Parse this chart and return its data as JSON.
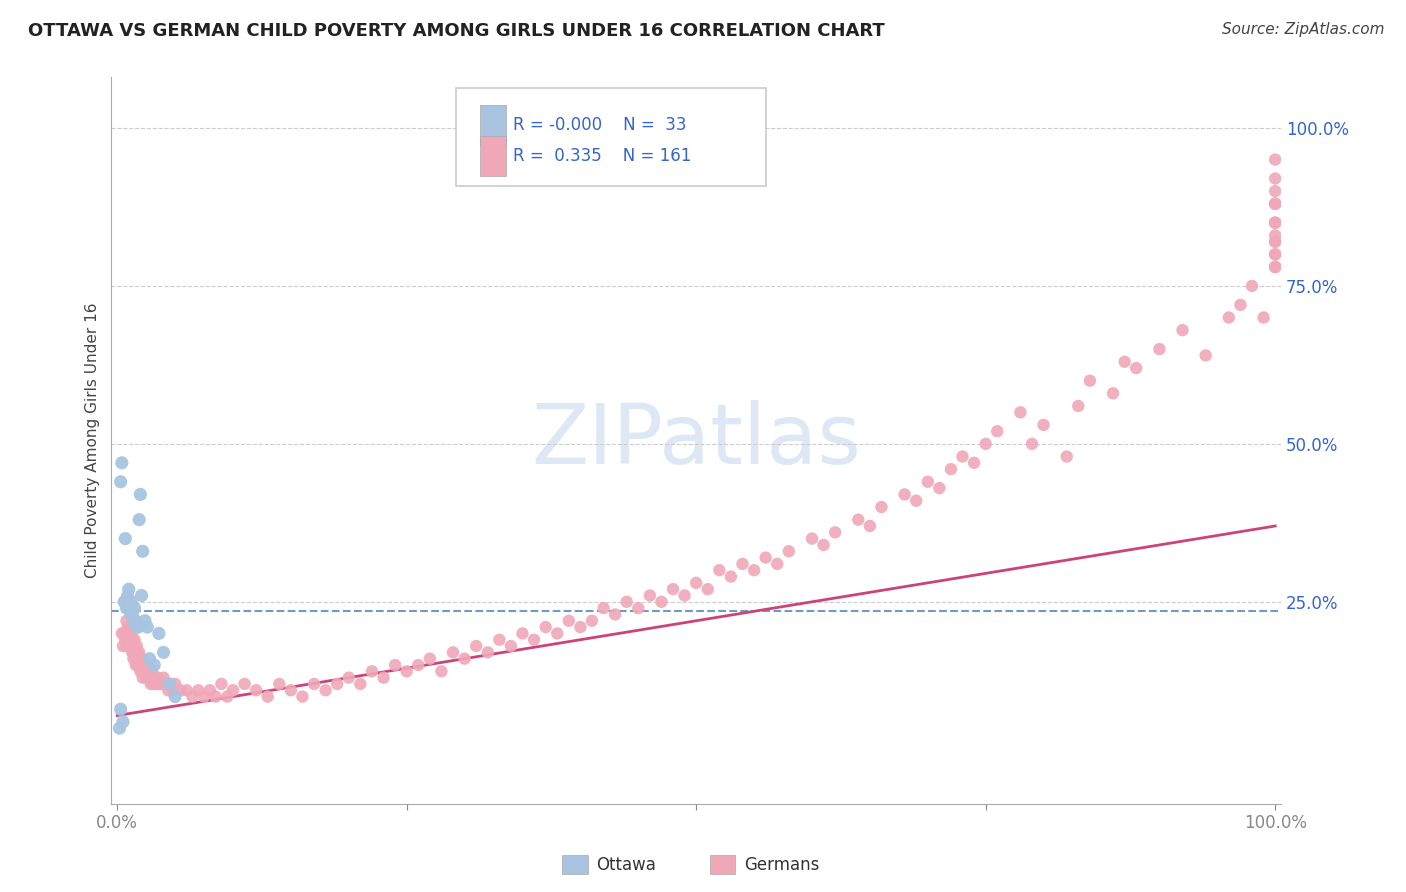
{
  "title": "OTTAWA VS GERMAN CHILD POVERTY AMONG GIRLS UNDER 16 CORRELATION CHART",
  "source": "Source: ZipAtlas.com",
  "ylabel": "Child Poverty Among Girls Under 16",
  "background_color": "#ffffff",
  "watermark_text": "ZIPatlas",
  "watermark_color": "#d0dff0",
  "legend_r_ottawa": "-0.000",
  "legend_n_ottawa": "33",
  "legend_r_german": "0.335",
  "legend_n_german": "161",
  "ottawa_color": "#a8c4e0",
  "german_color": "#f0a8b8",
  "trend_ottawa_color": "#5588bb",
  "trend_german_color": "#cc4477",
  "ottawa_x": [
    0.002,
    0.003,
    0.003,
    0.004,
    0.005,
    0.006,
    0.007,
    0.008,
    0.009,
    0.009,
    0.01,
    0.01,
    0.011,
    0.012,
    0.012,
    0.013,
    0.014,
    0.015,
    0.016,
    0.017,
    0.018,
    0.019,
    0.02,
    0.021,
    0.022,
    0.024,
    0.026,
    0.028,
    0.032,
    0.036,
    0.04,
    0.045,
    0.05
  ],
  "ottawa_y": [
    0.05,
    0.44,
    0.08,
    0.47,
    0.06,
    0.25,
    0.35,
    0.24,
    0.26,
    0.25,
    0.25,
    0.27,
    0.24,
    0.25,
    0.23,
    0.23,
    0.22,
    0.24,
    0.22,
    0.21,
    0.21,
    0.38,
    0.42,
    0.26,
    0.33,
    0.22,
    0.21,
    0.16,
    0.15,
    0.2,
    0.17,
    0.12,
    0.1
  ],
  "german_x": [
    0.004,
    0.005,
    0.006,
    0.007,
    0.008,
    0.008,
    0.009,
    0.009,
    0.01,
    0.01,
    0.011,
    0.011,
    0.012,
    0.012,
    0.013,
    0.013,
    0.014,
    0.014,
    0.015,
    0.015,
    0.016,
    0.016,
    0.017,
    0.017,
    0.018,
    0.018,
    0.019,
    0.019,
    0.02,
    0.02,
    0.021,
    0.021,
    0.022,
    0.022,
    0.023,
    0.024,
    0.025,
    0.025,
    0.026,
    0.027,
    0.028,
    0.029,
    0.03,
    0.031,
    0.032,
    0.033,
    0.035,
    0.036,
    0.038,
    0.04,
    0.042,
    0.044,
    0.046,
    0.048,
    0.05,
    0.055,
    0.06,
    0.065,
    0.07,
    0.075,
    0.08,
    0.085,
    0.09,
    0.095,
    0.1,
    0.11,
    0.12,
    0.13,
    0.14,
    0.15,
    0.16,
    0.17,
    0.18,
    0.19,
    0.2,
    0.21,
    0.22,
    0.23,
    0.24,
    0.25,
    0.26,
    0.27,
    0.28,
    0.29,
    0.3,
    0.31,
    0.32,
    0.33,
    0.34,
    0.35,
    0.36,
    0.37,
    0.38,
    0.39,
    0.4,
    0.41,
    0.42,
    0.43,
    0.44,
    0.45,
    0.46,
    0.47,
    0.48,
    0.49,
    0.5,
    0.51,
    0.52,
    0.53,
    0.54,
    0.55,
    0.56,
    0.57,
    0.58,
    0.6,
    0.61,
    0.62,
    0.64,
    0.65,
    0.66,
    0.68,
    0.69,
    0.7,
    0.71,
    0.72,
    0.73,
    0.74,
    0.75,
    0.76,
    0.78,
    0.79,
    0.8,
    0.82,
    0.83,
    0.84,
    0.86,
    0.87,
    0.88,
    0.9,
    0.92,
    0.94,
    0.96,
    0.97,
    0.98,
    0.99,
    1.0,
    1.0,
    1.0,
    1.0,
    1.0,
    1.0,
    1.0,
    1.0,
    1.0,
    1.0,
    1.0,
    1.0,
    1.0,
    1.0,
    1.0,
    1.0,
    1.0
  ],
  "german_y": [
    0.2,
    0.18,
    0.2,
    0.19,
    0.22,
    0.18,
    0.21,
    0.19,
    0.2,
    0.18,
    0.19,
    0.21,
    0.2,
    0.18,
    0.19,
    0.17,
    0.18,
    0.16,
    0.19,
    0.17,
    0.17,
    0.15,
    0.18,
    0.16,
    0.17,
    0.15,
    0.17,
    0.15,
    0.16,
    0.14,
    0.16,
    0.14,
    0.15,
    0.13,
    0.15,
    0.14,
    0.15,
    0.13,
    0.14,
    0.13,
    0.14,
    0.12,
    0.14,
    0.12,
    0.13,
    0.12,
    0.13,
    0.12,
    0.12,
    0.13,
    0.12,
    0.11,
    0.12,
    0.11,
    0.12,
    0.11,
    0.11,
    0.1,
    0.11,
    0.1,
    0.11,
    0.1,
    0.12,
    0.1,
    0.11,
    0.12,
    0.11,
    0.1,
    0.12,
    0.11,
    0.1,
    0.12,
    0.11,
    0.12,
    0.13,
    0.12,
    0.14,
    0.13,
    0.15,
    0.14,
    0.15,
    0.16,
    0.14,
    0.17,
    0.16,
    0.18,
    0.17,
    0.19,
    0.18,
    0.2,
    0.19,
    0.21,
    0.2,
    0.22,
    0.21,
    0.22,
    0.24,
    0.23,
    0.25,
    0.24,
    0.26,
    0.25,
    0.27,
    0.26,
    0.28,
    0.27,
    0.3,
    0.29,
    0.31,
    0.3,
    0.32,
    0.31,
    0.33,
    0.35,
    0.34,
    0.36,
    0.38,
    0.37,
    0.4,
    0.42,
    0.41,
    0.44,
    0.43,
    0.46,
    0.48,
    0.47,
    0.5,
    0.52,
    0.55,
    0.5,
    0.53,
    0.48,
    0.56,
    0.6,
    0.58,
    0.63,
    0.62,
    0.65,
    0.68,
    0.64,
    0.7,
    0.72,
    0.75,
    0.7,
    0.78,
    0.8,
    0.83,
    0.88,
    0.85,
    0.82,
    0.78,
    0.82,
    0.85,
    0.88,
    0.92,
    0.8,
    0.85,
    0.88,
    0.78,
    0.9,
    0.95
  ],
  "ottawa_trend_y": 0.235,
  "german_trend_start": 0.07,
  "german_trend_end": 0.37,
  "xlim": [
    -0.005,
    1.005
  ],
  "ylim": [
    -0.07,
    1.08
  ],
  "yticks": [
    0.25,
    0.5,
    0.75,
    1.0
  ],
  "ytick_labels": [
    "25.0%",
    "50.0%",
    "75.0%",
    "100.0%"
  ],
  "xtick_labels_show": [
    "0.0%",
    "100.0%"
  ],
  "title_fontsize": 13,
  "axis_label_fontsize": 11,
  "tick_fontsize": 12,
  "source_fontsize": 11
}
